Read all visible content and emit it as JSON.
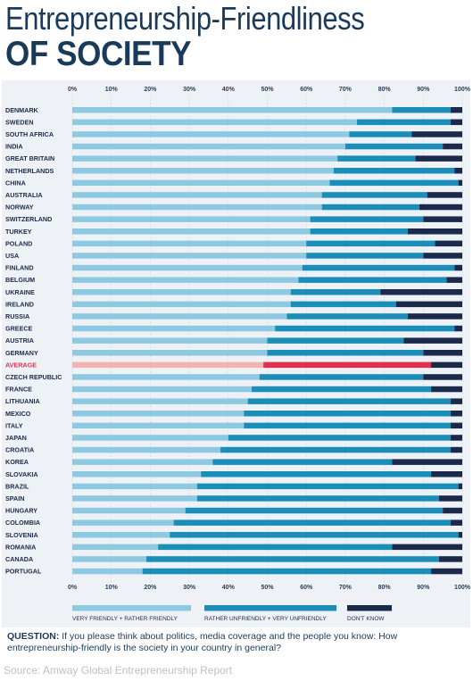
{
  "title_line1": "Entrepreneurship-Friendliness",
  "title_line2": "OF SOCIETY",
  "question_label": "QUESTION:",
  "question_text": "If you please think about politics, media coverage and the people you know: How entrepreneurship-friendly is the society in your country in general?",
  "source": "Source: Amway Global Entrepreneurship Report",
  "chart_data": {
    "type": "bar",
    "orientation": "horizontal",
    "stacked": true,
    "xlim": [
      0,
      100
    ],
    "ticks": [
      "0%",
      "10%",
      "20%",
      "30%",
      "40%",
      "50%",
      "60%",
      "70%",
      "80%",
      "90%",
      "100%"
    ],
    "categories": [
      "DENMARK",
      "SWEDEN",
      "SOUTH AFRICA",
      "INDIA",
      "GREAT BRITAIN",
      "NETHERLANDS",
      "CHINA",
      "AUSTRALIA",
      "NORWAY",
      "SWITZERLAND",
      "TURKEY",
      "POLAND",
      "USA",
      "FINLAND",
      "BELGIUM",
      "UKRAINE",
      "IRELAND",
      "RUSSIA",
      "GREECE",
      "AUSTRIA",
      "GERMANY",
      "AVERAGE",
      "CZECH REPUBLIC",
      "FRANCE",
      "LITHUANIA",
      "MEXICO",
      "ITALY",
      "JAPAN",
      "CROATIA",
      "KOREA",
      "SLOVAKIA",
      "BRAZIL",
      "SPAIN",
      "HUNGARY",
      "COLOMBIA",
      "SLOVENIA",
      "ROMANIA",
      "CANADA",
      "PORTUGAL"
    ],
    "highlight_category": "AVERAGE",
    "series": [
      {
        "name": "VERY FRIENDLY + RATHER FRIENDLY",
        "color": "#8ec9e2",
        "highlight_color": "#f2b3b3",
        "values": [
          82,
          73,
          71,
          70,
          68,
          67,
          66,
          64,
          64,
          61,
          61,
          60,
          60,
          59,
          58,
          56,
          56,
          55,
          52,
          50,
          50,
          49,
          48,
          46,
          45,
          44,
          44,
          40,
          38,
          36,
          33,
          32,
          32,
          29,
          26,
          25,
          22,
          19,
          18
        ]
      },
      {
        "name": "RATHER UNFRIENDLY + VERY UNFRIENDLY",
        "color": "#1a8db8",
        "highlight_color": "#e03050",
        "values": [
          15,
          24,
          16,
          25,
          20,
          31,
          33,
          27,
          25,
          29,
          25,
          33,
          30,
          39,
          38,
          23,
          27,
          31,
          46,
          35,
          40,
          43,
          42,
          46,
          52,
          53,
          53,
          57,
          59,
          46,
          59,
          67,
          62,
          66,
          71,
          74,
          60,
          75,
          74
        ]
      },
      {
        "name": "DON'T KNOW",
        "color": "#1b2a4a",
        "highlight_color": "#1b2a4a",
        "values": [
          3,
          3,
          13,
          5,
          12,
          2,
          1,
          9,
          11,
          10,
          14,
          7,
          10,
          2,
          4,
          21,
          17,
          14,
          2,
          15,
          10,
          8,
          10,
          8,
          3,
          3,
          3,
          3,
          3,
          18,
          8,
          1,
          6,
          5,
          3,
          1,
          18,
          6,
          8
        ]
      }
    ]
  }
}
